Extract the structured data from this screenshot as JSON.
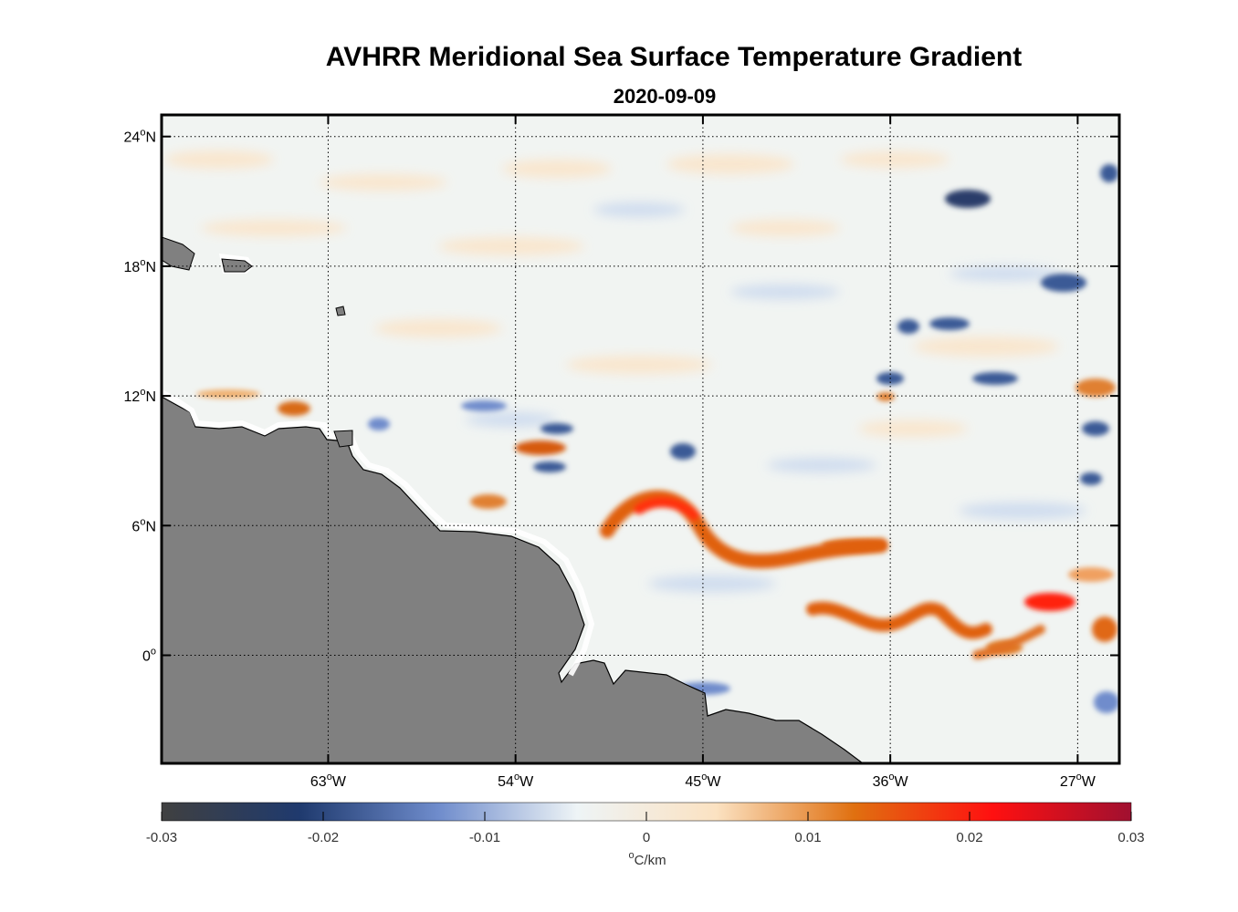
{
  "title": "AVHRR Meridional Sea Surface Temperature Gradient",
  "date": "2020-09-09",
  "map": {
    "lon_range": [
      -71,
      -25
    ],
    "lat_range": [
      -5,
      25
    ],
    "lon_ticks": [
      {
        "value": -63,
        "label_num": "63",
        "label_hem": "W"
      },
      {
        "value": -54,
        "label_num": "54",
        "label_hem": "W"
      },
      {
        "value": -45,
        "label_num": "45",
        "label_hem": "W"
      },
      {
        "value": -36,
        "label_num": "36",
        "label_hem": "W"
      },
      {
        "value": -27,
        "label_num": "27",
        "label_hem": "W"
      }
    ],
    "lat_ticks": [
      {
        "value": 24,
        "label_num": "24",
        "label_hem": "N"
      },
      {
        "value": 18,
        "label_num": "18",
        "label_hem": "N"
      },
      {
        "value": 12,
        "label_num": "12",
        "label_hem": "N"
      },
      {
        "value": 6,
        "label_num": "6",
        "label_hem": "N"
      },
      {
        "value": 0,
        "label_num": "0",
        "label_hem": ""
      }
    ],
    "degree_symbol": "o",
    "land_color": "#808080"
  },
  "colorbar": {
    "ticks": [
      {
        "value": -0.03,
        "label": "-0.03"
      },
      {
        "value": -0.02,
        "label": "-0.02"
      },
      {
        "value": -0.01,
        "label": "-0.01"
      },
      {
        "value": 0,
        "label": "0"
      },
      {
        "value": 0.01,
        "label": "0.01"
      },
      {
        "value": 0.02,
        "label": "0.02"
      },
      {
        "value": 0.03,
        "label": "0.03"
      }
    ],
    "units_degree": "o",
    "units": "C/km",
    "stops": [
      "#404040",
      "#1f3a6e",
      "#6f8ccc",
      "#eef4f6",
      "#fbe2c2",
      "#e07010",
      "#ff1010",
      "#a01030"
    ]
  }
}
